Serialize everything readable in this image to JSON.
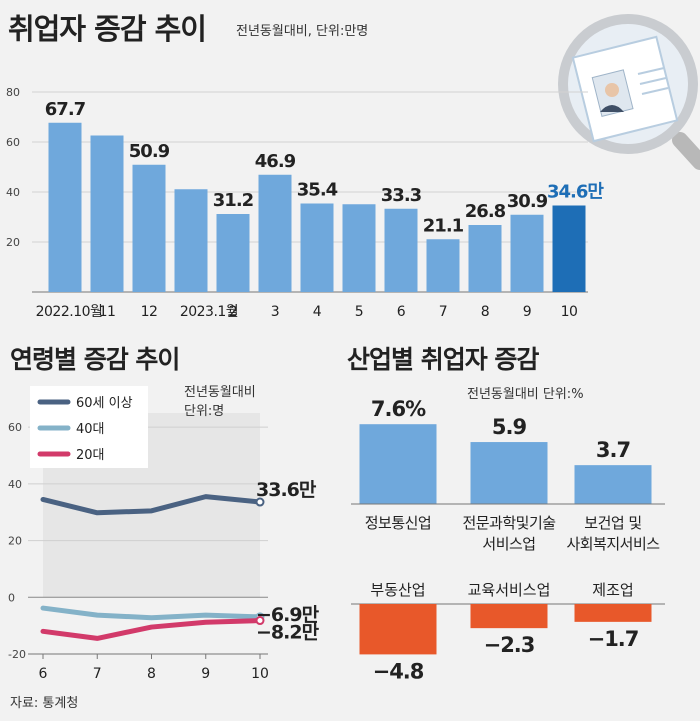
{
  "header": {
    "title": "취업자 증감 추이",
    "subtitle": "전년동월대비, 단위:만명"
  },
  "source": "자료: 통계청",
  "colors": {
    "bar": "#6fa8dc",
    "bar_highlight": "#1e6eb6",
    "highlight_text": "#1e6eb6",
    "negative_bar": "#e8582a",
    "series_60": "#4a6282",
    "series_40": "#84b2c8",
    "series_20": "#d23a6a",
    "band": "#dcdcdc"
  },
  "chart_data": [
    {
      "type": "bar",
      "title": "취업자 증감 추이",
      "unit_note": "전년동월대비, 단위:만명",
      "categories": [
        "2022.10월",
        "11",
        "12",
        "2023.1월",
        "2",
        "3",
        "4",
        "5",
        "6",
        "7",
        "8",
        "9",
        "10"
      ],
      "values": [
        67.7,
        62.6,
        50.9,
        41.1,
        31.2,
        46.9,
        35.4,
        35.1,
        33.3,
        21.1,
        26.8,
        30.9,
        34.6
      ],
      "value_labels": [
        "67.7",
        "",
        "50.9",
        "",
        "31.2",
        "46.9",
        "35.4",
        "",
        "33.3",
        "21.1",
        "26.8",
        "30.9",
        "34.6만"
      ],
      "highlight_index": 12,
      "yticks": [
        20,
        40,
        60,
        80
      ],
      "ylim": [
        0,
        85
      ],
      "grid": true
    },
    {
      "type": "line",
      "title": "연령별 증감 추이",
      "unit_note_1": "전년동월대비",
      "unit_note_2": "단위:명",
      "x": [
        6,
        7,
        8,
        9,
        10
      ],
      "xticks": [
        "6",
        "7",
        "8",
        "9",
        "10"
      ],
      "yticks": [
        -20,
        0,
        20,
        40,
        60
      ],
      "ylim": [
        -20,
        65
      ],
      "legend_placement": "top-left",
      "series": [
        {
          "name": "60세 이상",
          "color_key": "series_60",
          "values": [
            34.5,
            29.8,
            30.5,
            35.5,
            33.6
          ],
          "end_label": "33.6만"
        },
        {
          "name": "40대",
          "color_key": "series_40",
          "values": [
            -3.8,
            -6.3,
            -7.2,
            -6.3,
            -6.9
          ],
          "end_label": "−6.9만"
        },
        {
          "name": "20대",
          "color_key": "series_20",
          "values": [
            -12.0,
            -14.5,
            -10.5,
            -8.8,
            -8.2
          ],
          "end_label": "−8.2만"
        }
      ]
    },
    {
      "type": "bar",
      "title": "산업별 취업자 증감",
      "unit_note": "전년동월대비 단위:%",
      "positive": [
        {
          "name_lines": [
            "정보통신업"
          ],
          "value": 7.6,
          "label": "7.6%"
        },
        {
          "name_lines": [
            "전문과학및기술",
            "서비스업"
          ],
          "value": 5.9,
          "label": "5.9"
        },
        {
          "name_lines": [
            "보건업 및",
            "사회복지서비스"
          ],
          "value": 3.7,
          "label": "3.7"
        }
      ],
      "negative": [
        {
          "name": "부동산업",
          "value": -4.8,
          "label": "−4.8"
        },
        {
          "name": "교육서비스업",
          "value": -2.3,
          "label": "−2.3"
        },
        {
          "name": "제조업",
          "value": -1.7,
          "label": "−1.7"
        }
      ]
    }
  ]
}
